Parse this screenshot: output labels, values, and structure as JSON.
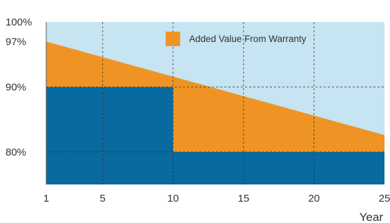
{
  "chart_data": {
    "type": "area",
    "title": "",
    "xlabel": "Year",
    "ylabel": "",
    "x_ticks": [
      1,
      5,
      10,
      15,
      20,
      25
    ],
    "x_tick_labels": [
      "1",
      "5",
      "10",
      "15",
      "20",
      "25"
    ],
    "y_ticks": [
      80,
      90,
      97,
      100
    ],
    "y_tick_labels": [
      "80%",
      "90%",
      "97%",
      "100%"
    ],
    "xlim": [
      1,
      25
    ],
    "ylim": [
      75,
      100
    ],
    "grid": true,
    "legend_position": "top-right",
    "background_color": "#c6e4f1",
    "series": [
      {
        "name": "",
        "kind": "step-area",
        "color": "#086a9f",
        "points": [
          {
            "x": 1,
            "y": 90
          },
          {
            "x": 10,
            "y": 90
          },
          {
            "x": 10,
            "y": 80
          },
          {
            "x": 25,
            "y": 80
          }
        ]
      },
      {
        "name": "Added Value From Warranty",
        "kind": "band",
        "color": "#ef9424",
        "upper": [
          {
            "x": 1,
            "y": 97
          },
          {
            "x": 25,
            "y": 82.6
          }
        ]
      }
    ],
    "legend": [
      {
        "label": "Added Value From Warranty",
        "color": "#ef9424"
      }
    ]
  }
}
